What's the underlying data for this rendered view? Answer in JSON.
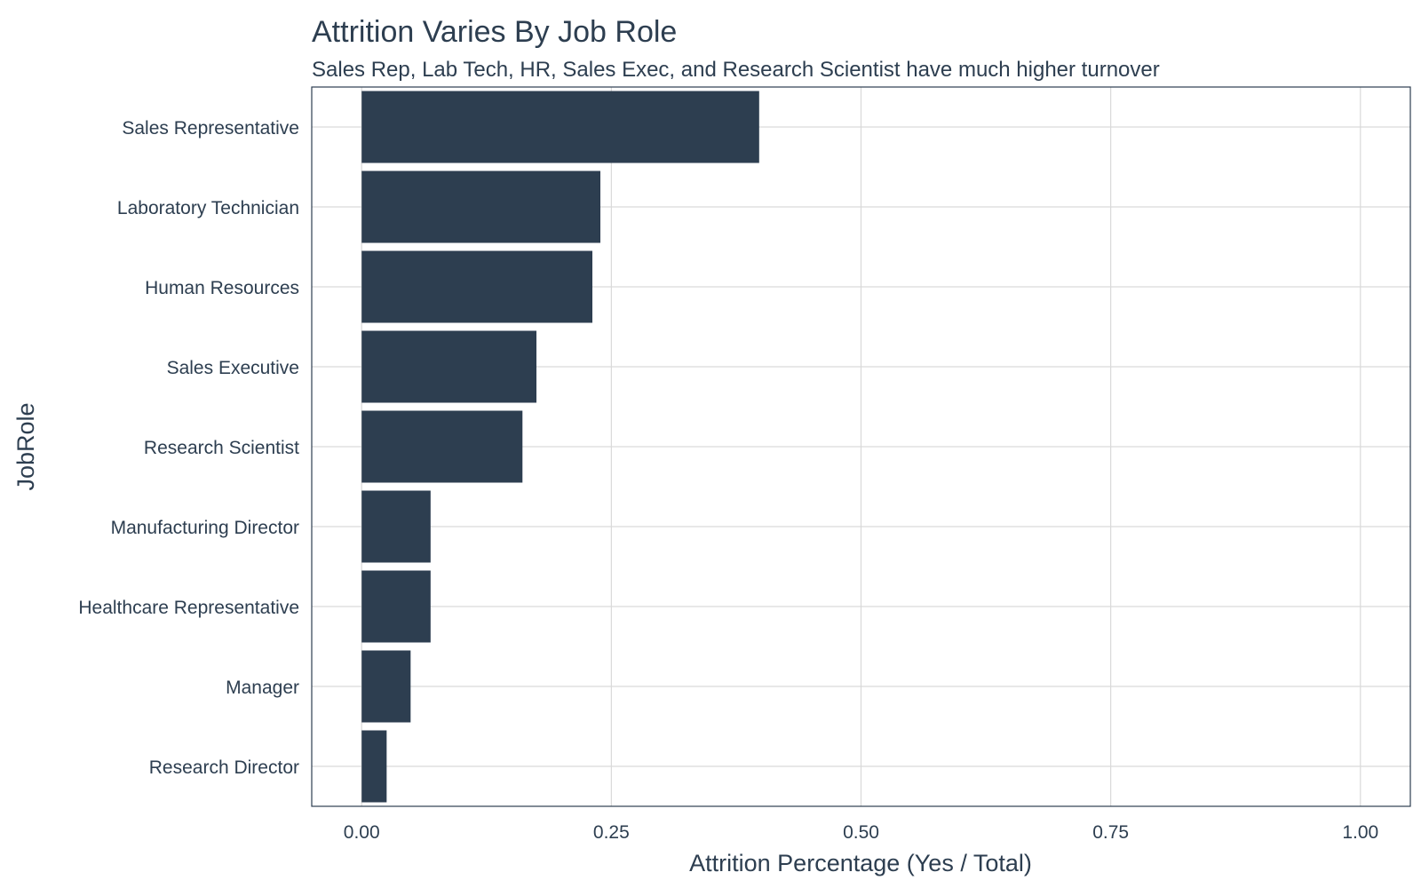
{
  "chart_data": {
    "type": "bar",
    "orientation": "horizontal",
    "title": "Attrition Varies By Job Role",
    "subtitle": "Sales Rep, Lab Tech, HR, Sales Exec, and Research Scientist have much higher turnover",
    "xlabel": "Attrition Percentage (Yes / Total)",
    "ylabel": "JobRole",
    "categories": [
      "Sales Representative",
      "Laboratory Technician",
      "Human Resources",
      "Sales Executive",
      "Research Scientist",
      "Manufacturing Director",
      "Healthcare Representative",
      "Manager",
      "Research Director"
    ],
    "values": [
      0.398,
      0.239,
      0.231,
      0.175,
      0.161,
      0.069,
      0.069,
      0.049,
      0.025
    ],
    "xlim": [
      -0.05,
      1.05
    ],
    "xticks": [
      0,
      0.25,
      0.5,
      0.75,
      1.0
    ],
    "xtick_labels": [
      "0.00",
      "0.25",
      "0.50",
      "0.75",
      "1.00"
    ],
    "grid": true,
    "bar_color": "#2d3e50",
    "text_color": "#2d3e50",
    "grid_color": "#d9d9d9"
  }
}
